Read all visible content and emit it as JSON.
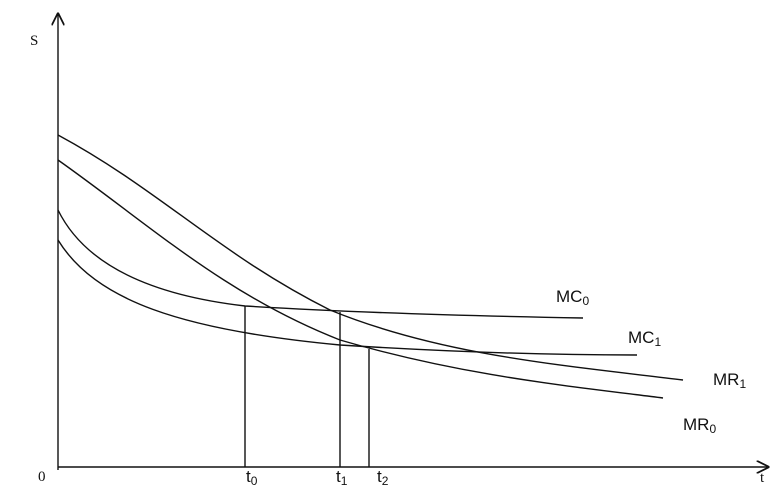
{
  "axes": {
    "y_label": "S",
    "x_label": "t",
    "origin_label": "0"
  },
  "curves": [
    {
      "id": "MC0",
      "base": "MC",
      "sub": "0"
    },
    {
      "id": "MC1",
      "base": "MC",
      "sub": "1"
    },
    {
      "id": "MR1",
      "base": "MR",
      "sub": "1"
    },
    {
      "id": "MR0",
      "base": "MR",
      "sub": "0"
    }
  ],
  "ticks": [
    {
      "base": "t",
      "sub": "0"
    },
    {
      "base": "t",
      "sub": "1"
    },
    {
      "base": "t",
      "sub": "2"
    }
  ]
}
